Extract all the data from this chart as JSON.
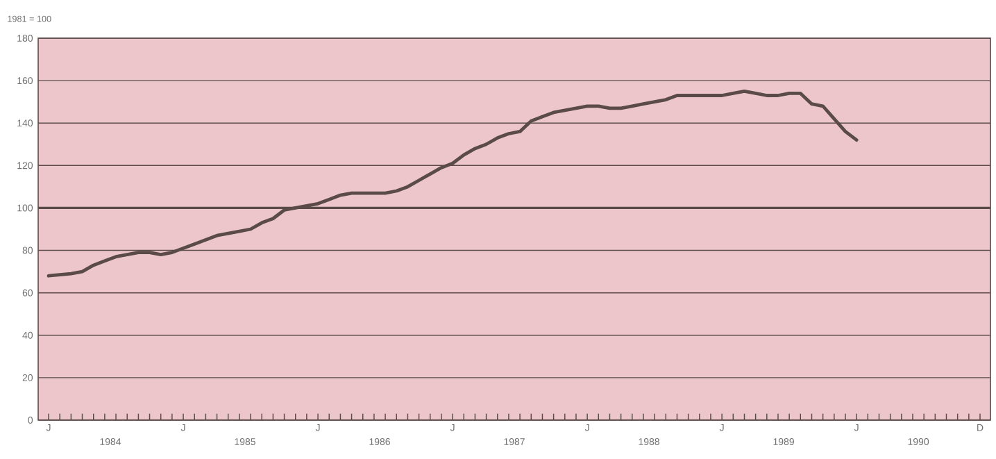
{
  "chart_data": {
    "type": "line",
    "ylabel": "1981 = 100",
    "categories": [
      "J",
      null,
      null,
      null,
      null,
      null,
      null,
      null,
      null,
      null,
      null,
      null,
      "J",
      null,
      null,
      null,
      null,
      null,
      null,
      null,
      null,
      null,
      null,
      null,
      "J",
      null,
      null,
      null,
      null,
      null,
      null,
      null,
      null,
      null,
      null,
      null,
      "J",
      null,
      null,
      null,
      null,
      null,
      null,
      null,
      null,
      null,
      null,
      null,
      "J",
      null,
      null,
      null,
      null,
      null,
      null,
      null,
      null,
      null,
      null,
      null,
      "J",
      null,
      null,
      null,
      null,
      null,
      null,
      null,
      null,
      null,
      null,
      null,
      "J",
      null,
      null,
      null,
      null,
      null,
      null,
      null,
      null,
      null,
      null,
      "D"
    ],
    "values": [
      68,
      68.5,
      69,
      70,
      73,
      75,
      77,
      78,
      79,
      79,
      78,
      79,
      81,
      83,
      85,
      87,
      88,
      89,
      90,
      93,
      95,
      99,
      100,
      101,
      102,
      104,
      106,
      107,
      107,
      107,
      107,
      108,
      110,
      113,
      116,
      119,
      121,
      125,
      128,
      130,
      133,
      135,
      136,
      141,
      143,
      145,
      146,
      147,
      148,
      148,
      147,
      147,
      148,
      149,
      150,
      151,
      153,
      153,
      153,
      153,
      153,
      154,
      155,
      154,
      153,
      153,
      154,
      154,
      149,
      148,
      142,
      136,
      132,
      null,
      null,
      null,
      null,
      null,
      null,
      null,
      null,
      null,
      null,
      null
    ],
    "color": "#5a4b48",
    "line_style": "solid",
    "ylim": [
      0,
      180
    ],
    "yticks": [
      0,
      20,
      40,
      60,
      80,
      100,
      120,
      140,
      160,
      180
    ],
    "annotations": [
      "1984",
      "1985",
      "1986",
      "1987",
      "1988",
      "1989",
      "1990"
    ],
    "grid": "y",
    "ref_lines": [
      {
        "axis": "y",
        "value": 100,
        "color": "#5a4b48"
      }
    ]
  }
}
